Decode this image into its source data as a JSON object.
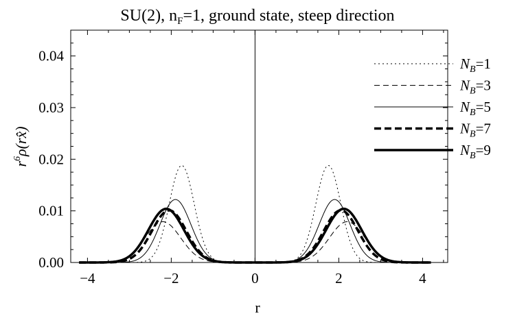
{
  "chart_data": {
    "type": "line",
    "title": "SU(2), n_F=1, ground state, steep direction",
    "xlabel": "r",
    "ylabel": "r^6 ρ(rx̂)",
    "xlim": [
      -4.4,
      4.6
    ],
    "ylim": [
      0,
      0.045
    ],
    "xticks": [
      -4,
      -2,
      0,
      2,
      4
    ],
    "xtick_labels": [
      "−4",
      "−2",
      "0",
      "2",
      "4"
    ],
    "yticks": [
      0,
      0.01,
      0.02,
      0.03,
      0.04
    ],
    "ytick_labels": [
      "0.00",
      "0.01",
      "0.02",
      "0.03",
      "0.04"
    ],
    "grid": false,
    "legend_position": "right",
    "vertical_line_at": 0,
    "x_range": [
      -4.2,
      4.2
    ],
    "series": [
      {
        "name": "N_B=1",
        "legend_label": "N_B=1",
        "style": "dotted",
        "peak_x": 1.75,
        "peak_y": 0.0188,
        "width": 0.42
      },
      {
        "name": "N_B=3",
        "legend_label": "N_B=3",
        "style": "dashed-thin",
        "peak_x": 2.2,
        "peak_y": 0.0079,
        "width": 0.6
      },
      {
        "name": "N_B=5",
        "legend_label": "N_B=5",
        "style": "solid-thin",
        "peak_x": 1.9,
        "peak_y": 0.0122,
        "width": 0.52
      },
      {
        "name": "N_B=7",
        "legend_label": "N_B=7",
        "style": "dashed-thick",
        "peak_x": 2.05,
        "peak_y": 0.0101,
        "width": 0.58
      },
      {
        "name": "N_B=9",
        "legend_label": "N_B=9",
        "style": "solid-thick",
        "peak_x": 2.12,
        "peak_y": 0.0104,
        "width": 0.6
      }
    ]
  }
}
